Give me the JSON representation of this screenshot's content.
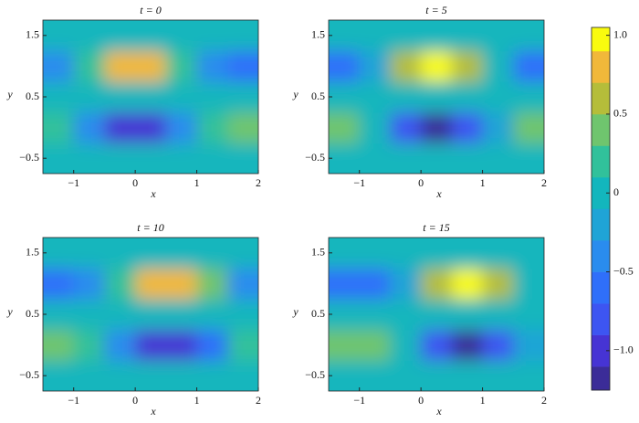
{
  "chart_data": [
    {
      "type": "heatmap",
      "title": "t = 0",
      "xlabel": "x",
      "ylabel": "y",
      "x": [
        -1.25,
        -0.75,
        -0.25,
        0.25,
        0.75,
        1.25,
        1.75
      ],
      "y": [
        -0.5,
        0,
        0.5,
        1,
        1.5
      ],
      "z": [
        [
          -0.1,
          -0.1,
          -0.1,
          -0.1,
          -0.1,
          -0.1,
          -0.1
        ],
        [
          0.19,
          -0.44,
          -1.05,
          -1.05,
          -0.44,
          0.19,
          0.47
        ],
        [
          -0.1,
          -0.1,
          -0.1,
          -0.1,
          -0.1,
          -0.1,
          -0.1
        ],
        [
          -0.39,
          0.24,
          0.85,
          0.85,
          0.24,
          -0.39,
          -0.67
        ],
        [
          -0.1,
          -0.1,
          -0.1,
          -0.1,
          -0.1,
          -0.1,
          -0.1
        ]
      ],
      "xlim": [
        -1.5,
        2
      ],
      "ylim": [
        -0.75,
        1.75
      ],
      "xticks": [
        {
          "value": -1,
          "label": "−1"
        },
        0,
        1,
        2
      ],
      "yticks": [
        {
          "value": -0.5,
          "label": "−0.5"
        },
        0.5,
        1.5
      ]
    },
    {
      "type": "heatmap",
      "title": "t = 5",
      "xlabel": "x",
      "ylabel": "y",
      "x": [
        -1.25,
        -0.75,
        -0.25,
        0.25,
        0.75,
        1.25,
        1.75
      ],
      "y": [
        -0.5,
        0,
        0.5,
        1,
        1.5
      ],
      "z": [
        [
          -0.1,
          -0.1,
          -0.1,
          -0.1,
          -0.1,
          -0.1,
          -0.1
        ],
        [
          0.4,
          -0.07,
          -0.75,
          -1.19,
          -0.81,
          -0.13,
          0.38
        ],
        [
          -0.1,
          -0.1,
          -0.1,
          -0.1,
          -0.1,
          -0.1,
          -0.1
        ],
        [
          -0.6,
          -0.13,
          0.55,
          0.99,
          0.61,
          -0.07,
          -0.58
        ],
        [
          -0.1,
          -0.1,
          -0.1,
          -0.1,
          -0.1,
          -0.1,
          -0.1
        ]
      ],
      "xlim": [
        -1.5,
        2
      ],
      "ylim": [
        -0.75,
        1.75
      ],
      "xticks": [
        {
          "value": -1,
          "label": "−1"
        },
        0,
        1,
        2
      ],
      "yticks": [
        {
          "value": -0.5,
          "label": "−0.5"
        },
        0.5,
        1.5
      ]
    },
    {
      "type": "heatmap",
      "title": "t = 10",
      "xlabel": "x",
      "ylabel": "y",
      "x": [
        -1.25,
        -0.75,
        -0.25,
        0.25,
        0.75,
        1.25,
        1.75
      ],
      "y": [
        -0.5,
        0,
        0.5,
        1,
        1.5
      ],
      "z": [
        [
          -0.1,
          -0.1,
          -0.1,
          -0.1,
          -0.1,
          -0.1,
          -0.1
        ],
        [
          0.48,
          0.24,
          -0.37,
          -1.01,
          -1.09,
          -0.51,
          0.14
        ],
        [
          -0.1,
          -0.1,
          -0.1,
          -0.1,
          -0.1,
          -0.1,
          -0.1
        ],
        [
          -0.68,
          -0.44,
          0.17,
          0.81,
          0.89,
          0.31,
          -0.34
        ],
        [
          -0.1,
          -0.1,
          -0.1,
          -0.1,
          -0.1,
          -0.1,
          -0.1
        ]
      ],
      "xlim": [
        -1.5,
        2
      ],
      "ylim": [
        -0.75,
        1.75
      ],
      "xticks": [
        {
          "value": -1,
          "label": "−1"
        },
        0,
        1,
        2
      ],
      "yticks": [
        {
          "value": -0.5,
          "label": "−0.5"
        },
        0.5,
        1.5
      ]
    },
    {
      "type": "heatmap",
      "title": "t = 15",
      "xlabel": "x",
      "ylabel": "y",
      "x": [
        -1.25,
        -0.75,
        -0.25,
        0.25,
        0.75,
        1.25,
        1.75
      ],
      "y": [
        -0.5,
        0,
        0.5,
        1,
        1.5
      ],
      "z": [
        [
          -0.1,
          -0.1,
          -0.1,
          -0.1,
          -0.1,
          -0.1,
          -0.1
        ],
        [
          0.43,
          0.41,
          -0.04,
          -0.72,
          -1.18,
          -0.84,
          -0.16
        ],
        [
          -0.1,
          -0.1,
          -0.1,
          -0.1,
          -0.1,
          -0.1,
          -0.1
        ],
        [
          -0.63,
          -0.61,
          -0.16,
          0.52,
          0.98,
          0.64,
          -0.04
        ],
        [
          -0.1,
          -0.1,
          -0.1,
          -0.1,
          -0.1,
          -0.1,
          -0.1
        ]
      ],
      "xlim": [
        -1.5,
        2
      ],
      "ylim": [
        -0.75,
        1.75
      ],
      "xticks": [
        {
          "value": -1,
          "label": "−1"
        },
        0,
        1,
        2
      ],
      "yticks": [
        {
          "value": -0.5,
          "label": "−0.5"
        },
        0.5,
        1.5
      ]
    },
    {
      "type": "colorbar",
      "levels": [
        -1.25,
        -1.1,
        -0.9,
        -0.7,
        -0.5,
        -0.3,
        -0.1,
        0.1,
        0.3,
        0.5,
        0.7,
        0.9,
        1.05
      ],
      "colors": [
        "#3b2c98",
        "#4634d4",
        "#3d55f2",
        "#2f6ffa",
        "#2a8cee",
        "#1fa4d6",
        "#13b6bd",
        "#31c19b",
        "#6fc56e",
        "#b5bd3a",
        "#f1b83a",
        "#f9fb0e"
      ],
      "ylim": [
        -1.25,
        1.05
      ],
      "yticks": [
        {
          "value": -1,
          "label": "−1.0"
        },
        {
          "value": -0.5,
          "label": "−0.5"
        },
        0,
        0.5,
        {
          "value": 1,
          "label": "1.0"
        }
      ]
    }
  ]
}
